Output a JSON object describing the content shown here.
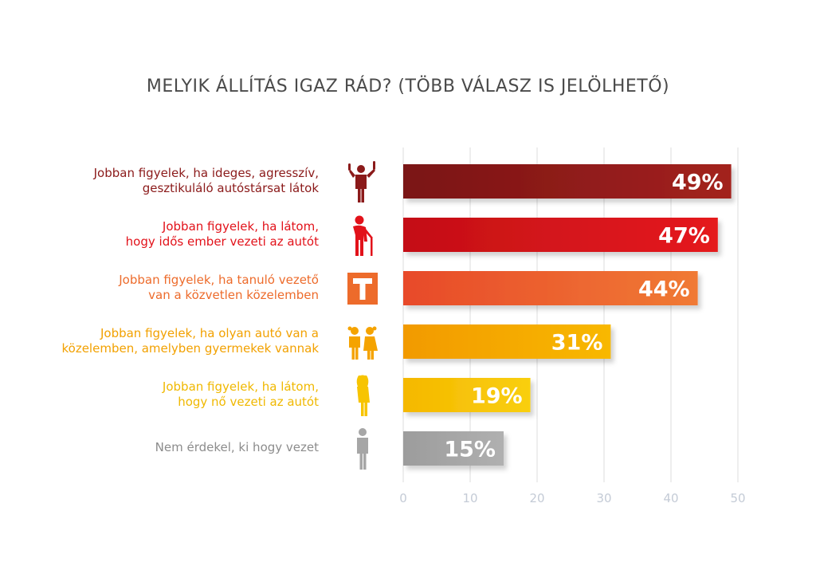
{
  "chart_data": {
    "type": "bar",
    "orientation": "horizontal",
    "title": "MELYIK ÁLLÍTÁS IGAZ RÁD? (TÖBB VÁLASZ IS JELÖLHETŐ)",
    "xlabel": "",
    "ylabel": "",
    "xlim": [
      0,
      50
    ],
    "xticks": [
      0,
      10,
      20,
      30,
      40,
      50
    ],
    "grid": true,
    "categories": [
      {
        "lines": [
          "Jobban figyelek, ha ideges, agresszív,",
          "gesztikuláló autóstársat látok"
        ],
        "value": 49,
        "value_label": "49%",
        "color": "#8b1a1a",
        "color_start": "#7a1414",
        "color_end": "#a3221f",
        "label_color": "#8b1a1a",
        "icon": "angry-man-icon"
      },
      {
        "lines": [
          "Jobban figyelek, ha látom,",
          "hogy idős ember vezeti az autót"
        ],
        "value": 47,
        "value_label": "47%",
        "color": "#e2121a",
        "color_start": "#c40f16",
        "color_end": "#e51a1f",
        "label_color": "#e2121a",
        "icon": "elderly-person-icon"
      },
      {
        "lines": [
          "Jobban figyelek, ha tanuló vezető",
          "van a közvetlen közelemben"
        ],
        "value": 44,
        "value_label": "44%",
        "color": "#ed6b2b",
        "color_start": "#e84a2a",
        "color_end": "#f07a34",
        "label_color": "#ed6b2b",
        "icon": "learner-t-icon"
      },
      {
        "lines": [
          "Jobban figyelek, ha olyan autó van a",
          "közelemben, amelyben gyermekek vannak"
        ],
        "value": 31,
        "value_label": "31%",
        "color": "#f5a300",
        "color_start": "#f29a00",
        "color_end": "#f8b800",
        "label_color": "#f2a100",
        "icon": "children-icon"
      },
      {
        "lines": [
          "Jobban figyelek, ha látom,",
          "hogy nő vezeti az autót"
        ],
        "value": 19,
        "value_label": "19%",
        "color": "#f7c400",
        "color_start": "#f5b800",
        "color_end": "#f9cf10",
        "label_color": "#f0b800",
        "icon": "woman-icon"
      },
      {
        "lines": [
          "Nem érdekel, ki hogy vezet"
        ],
        "value": 15,
        "value_label": "15%",
        "color": "#a6a6a6",
        "color_start": "#9c9c9c",
        "color_end": "#b0b0b0",
        "label_color": "#8c8c8c",
        "icon": "person-icon"
      }
    ]
  }
}
